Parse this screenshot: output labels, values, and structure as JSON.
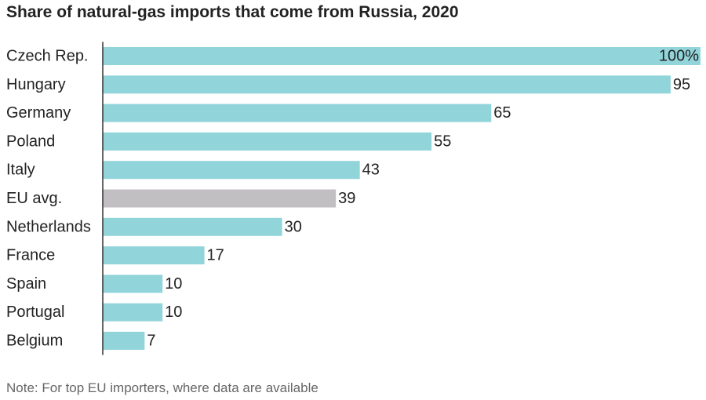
{
  "chart_data": {
    "type": "bar",
    "orientation": "horizontal",
    "title": "Share of natural-gas imports that come from Russia, 2020",
    "note": "Note: For top EU importers, where data are available",
    "categories": [
      "Czech Rep.",
      "Hungary",
      "Germany",
      "Poland",
      "Italy",
      "EU avg.",
      "Netherlands",
      "France",
      "Spain",
      "Portugal",
      "Belgium"
    ],
    "values": [
      100,
      95,
      65,
      55,
      43,
      39,
      30,
      17,
      10,
      10,
      7
    ],
    "value_labels": [
      "100%",
      "95",
      "65",
      "55",
      "43",
      "39",
      "30",
      "17",
      "10",
      "10",
      "7"
    ],
    "highlight_category": "EU avg.",
    "xlim": [
      0,
      100
    ],
    "grid": false,
    "colors": {
      "bar": "#91d4da",
      "highlight": "#c2bfc2",
      "axis": "#333333",
      "text": "#222222",
      "note": "#666666"
    }
  }
}
